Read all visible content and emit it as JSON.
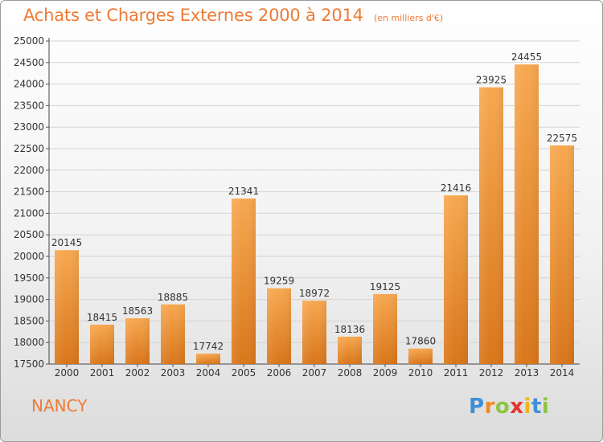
{
  "title": "Achats et Charges Externes 2000 à 2014",
  "subtitle": "(en milliers d'€)",
  "city": "NANCY",
  "logo": {
    "p": "P",
    "r": "r",
    "o": "o",
    "x": "x",
    "i1": "i",
    "t": "t",
    "i2": "i"
  },
  "colors": {
    "accent": "#ee7a34",
    "bar_light": "#f6a64e",
    "bar_dark": "#dd7a1c",
    "grid": "#d4d4d4"
  },
  "chart_data": {
    "type": "bar",
    "categories": [
      "2000",
      "2001",
      "2002",
      "2003",
      "2004",
      "2005",
      "2006",
      "2007",
      "2008",
      "2009",
      "2010",
      "2011",
      "2012",
      "2013",
      "2014"
    ],
    "values": [
      20145,
      18415,
      18563,
      18885,
      17742,
      21341,
      19259,
      18972,
      18136,
      19125,
      17860,
      21416,
      23925,
      24455,
      22575
    ],
    "ylim": [
      17500,
      25000
    ],
    "yticks": [
      17500,
      18000,
      18500,
      19000,
      19500,
      20000,
      20500,
      21000,
      21500,
      22000,
      22500,
      23000,
      23500,
      24000,
      24500,
      25000
    ],
    "grid": true,
    "data_labels": true
  }
}
